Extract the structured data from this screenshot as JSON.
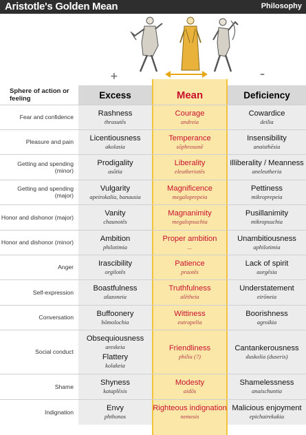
{
  "header": {
    "title": "Aristotle's Golden Mean",
    "subject": "Philosophy"
  },
  "signs": {
    "plus": "+",
    "minus": "–"
  },
  "columns": {
    "sphere": "Sphere of action or feeling",
    "excess": "Excess",
    "mean": "Mean",
    "deficiency": "Deficiency"
  },
  "rows": [
    {
      "sphere": "Fear and confidence",
      "excess": [
        {
          "name": "Rashness",
          "greek": "thrasutēs"
        }
      ],
      "mean": [
        {
          "name": "Courage",
          "greek": "andreia"
        }
      ],
      "deficiency": [
        {
          "name": "Cowardice",
          "greek": "deilia"
        }
      ]
    },
    {
      "sphere": "Pleasure and pain",
      "excess": [
        {
          "name": "Licentiousness",
          "greek": "akolasia"
        }
      ],
      "mean": [
        {
          "name": "Temperance",
          "greek": "sōphrosunē"
        }
      ],
      "deficiency": [
        {
          "name": "Insensibility",
          "greek": "anaisthēsia"
        }
      ]
    },
    {
      "sphere": "Getting and spending (minor)",
      "excess": [
        {
          "name": "Prodigality",
          "greek": "asōtia"
        }
      ],
      "mean": [
        {
          "name": "Liberality",
          "greek": "eleutheriotēs"
        }
      ],
      "deficiency": [
        {
          "name": "Illiberality / Meanness",
          "greek": "aneleutheria"
        }
      ]
    },
    {
      "sphere": "Getting and spending (major)",
      "excess": [
        {
          "name": "Vulgarity",
          "greek": "apeirokalia, banausia"
        }
      ],
      "mean": [
        {
          "name": "Magnificence",
          "greek": "megaloprepeia"
        }
      ],
      "deficiency": [
        {
          "name": "Pettiness",
          "greek": "mikroprepeia"
        }
      ]
    },
    {
      "sphere": "Honor and dishonor (major)",
      "excess": [
        {
          "name": "Vanity",
          "greek": "chaunotēs"
        }
      ],
      "mean": [
        {
          "name": "Magnanimity",
          "greek": "megalopsuchia"
        }
      ],
      "deficiency": [
        {
          "name": "Pusillanimity",
          "greek": "mikropsuchia"
        }
      ]
    },
    {
      "sphere": "Honor and dishonor (minor)",
      "excess": [
        {
          "name": "Ambition",
          "greek": "philotimia"
        }
      ],
      "mean": [
        {
          "name": "Proper ambition",
          "greek": "..."
        }
      ],
      "deficiency": [
        {
          "name": "Unambitiousness",
          "greek": "aphilotimia"
        }
      ]
    },
    {
      "sphere": "Anger",
      "excess": [
        {
          "name": "Irascibility",
          "greek": "orgilotēs"
        }
      ],
      "mean": [
        {
          "name": "Patience",
          "greek": "praotēs"
        }
      ],
      "deficiency": [
        {
          "name": "Lack of spirit",
          "greek": "aorgēsia"
        }
      ]
    },
    {
      "sphere": "Self-expression",
      "excess": [
        {
          "name": "Boastfulness",
          "greek": "alazoneia"
        }
      ],
      "mean": [
        {
          "name": "Truthfulness",
          "greek": "alētheia"
        }
      ],
      "deficiency": [
        {
          "name": "Understatement",
          "greek": "eirōneia"
        }
      ]
    },
    {
      "sphere": "Conversation",
      "excess": [
        {
          "name": "Buffoonery",
          "greek": "bōmolochia"
        }
      ],
      "mean": [
        {
          "name": "Wittiness",
          "greek": "eutrapelia"
        }
      ],
      "deficiency": [
        {
          "name": "Boorishness",
          "greek": "agroikia"
        }
      ]
    },
    {
      "sphere": "Social conduct",
      "excess": [
        {
          "name": "Obsequiousness",
          "greek": "areskeia"
        },
        {
          "name": "Flattery",
          "greek": "kolakeia"
        }
      ],
      "mean": [
        {
          "name": "Friendliness",
          "greek": "philia (?)"
        }
      ],
      "deficiency": [
        {
          "name": "Cantankerousness",
          "greek": "duskolia (duseris)"
        }
      ]
    },
    {
      "sphere": "Shame",
      "excess": [
        {
          "name": "Shyness",
          "greek": "kataplēxis"
        }
      ],
      "mean": [
        {
          "name": "Modesty",
          "greek": "aidōs"
        }
      ],
      "deficiency": [
        {
          "name": "Shamelessness",
          "greek": "anaischuntia"
        }
      ]
    },
    {
      "sphere": "Indignation",
      "excess": [
        {
          "name": "Envy",
          "greek": "phthonos"
        }
      ],
      "mean": [
        {
          "name": "Righteous indignation",
          "greek": "nemesis"
        }
      ],
      "deficiency": [
        {
          "name": "Malicious enjoyment",
          "greek": "epichairekakia"
        }
      ]
    }
  ]
}
